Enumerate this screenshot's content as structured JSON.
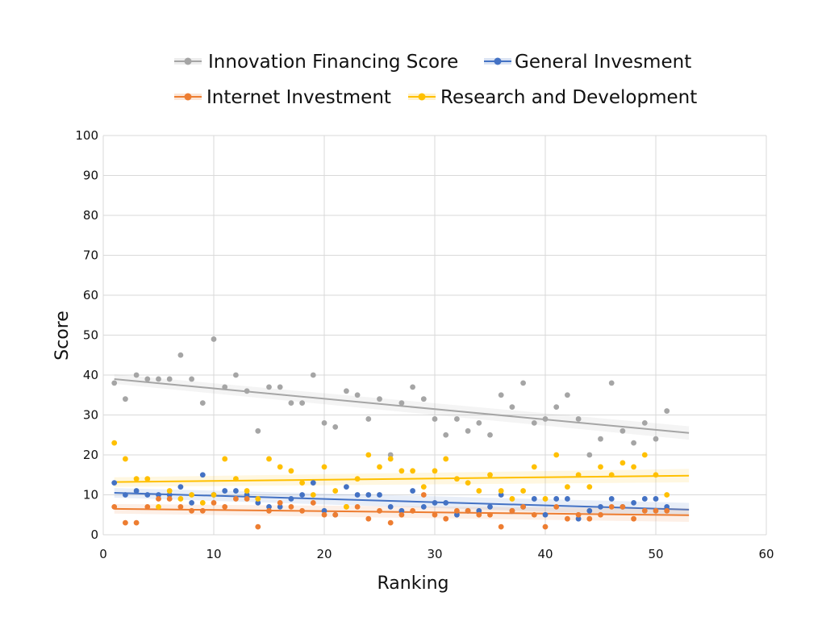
{
  "chart_data": {
    "type": "scatter",
    "xlabel": "Ranking",
    "ylabel": "Score",
    "xlim": [
      0,
      60
    ],
    "ylim": [
      0,
      100
    ],
    "xticks": [
      0,
      10,
      20,
      30,
      40,
      50,
      60
    ],
    "yticks": [
      0,
      10,
      20,
      30,
      40,
      50,
      60,
      70,
      80,
      90,
      100
    ],
    "grid": true,
    "legend_position": "top",
    "x": [
      1,
      2,
      3,
      4,
      5,
      6,
      7,
      8,
      9,
      10,
      11,
      12,
      13,
      14,
      15,
      16,
      17,
      18,
      19,
      20,
      21,
      22,
      23,
      24,
      25,
      26,
      27,
      28,
      29,
      30,
      31,
      32,
      33,
      34,
      35,
      36,
      37,
      38,
      39,
      40,
      41,
      42,
      43,
      44,
      45,
      46,
      47,
      48,
      49,
      50,
      51
    ],
    "series": [
      {
        "name": "Innovation Financing Score",
        "color": "#a5a5a5",
        "trend": [
          39,
          25.5
        ],
        "values": [
          38,
          34,
          40,
          39,
          39,
          39,
          45,
          39,
          33,
          49,
          37,
          40,
          36,
          26,
          37,
          37,
          33,
          33,
          40,
          28,
          27,
          36,
          35,
          29,
          34,
          20,
          33,
          37,
          34,
          29,
          25,
          29,
          26,
          28,
          25,
          35,
          32,
          38,
          28,
          29,
          32,
          35,
          29,
          20,
          24,
          38,
          26,
          23,
          28,
          24,
          31
        ]
      },
      {
        "name": "General Invesment",
        "color": "#4472c4",
        "trend": [
          10.5,
          6.3
        ],
        "values": [
          13,
          10,
          11,
          10,
          10,
          10,
          12,
          8,
          15,
          10,
          11,
          11,
          10,
          8,
          7,
          7,
          9,
          10,
          13,
          6,
          5,
          12,
          10,
          10,
          10,
          7,
          6,
          11,
          7,
          8,
          8,
          5,
          6,
          6,
          7,
          10,
          6,
          7,
          9,
          5,
          9,
          9,
          4,
          6,
          7,
          9,
          7,
          8,
          9,
          9,
          7
        ]
      },
      {
        "name": "Internet Investment",
        "color": "#ed7d31",
        "trend": [
          6.5,
          4.9
        ],
        "values": [
          7,
          3,
          3,
          7,
          9,
          9,
          7,
          6,
          6,
          8,
          7,
          9,
          9,
          2,
          6,
          8,
          7,
          6,
          8,
          5,
          5,
          7,
          7,
          4,
          6,
          3,
          5,
          6,
          10,
          5,
          4,
          6,
          6,
          5,
          5,
          2,
          6,
          7,
          5,
          2,
          7,
          4,
          5,
          4,
          5,
          7,
          7,
          4,
          6,
          6,
          6
        ]
      },
      {
        "name": "Research and Development",
        "color": "#ffc000",
        "trend": [
          13.2,
          14.8
        ],
        "values": [
          23,
          19,
          14,
          14,
          7,
          11,
          9,
          10,
          8,
          10,
          19,
          14,
          11,
          9,
          19,
          17,
          16,
          13,
          10,
          17,
          11,
          7,
          14,
          20,
          17,
          19,
          16,
          16,
          12,
          16,
          19,
          14,
          13,
          11,
          15,
          11,
          9,
          11,
          17,
          9,
          20,
          12,
          15,
          12,
          17,
          15,
          18,
          17,
          20,
          15,
          10
        ]
      }
    ]
  }
}
